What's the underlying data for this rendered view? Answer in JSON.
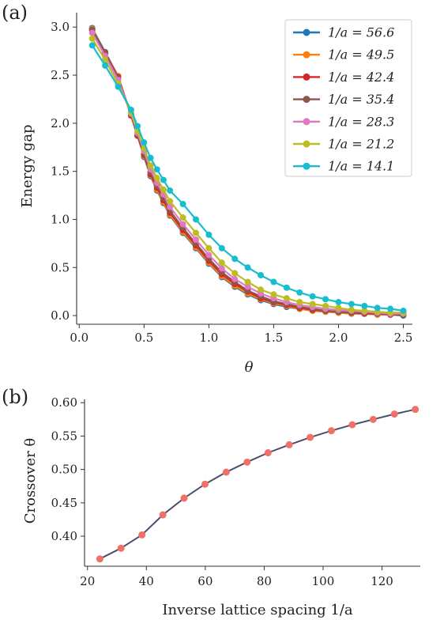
{
  "chart_data": [
    {
      "panel": "(a)",
      "type": "line",
      "xlabel": "θ",
      "ylabel": "Energy gap",
      "xlim": [
        -0.02,
        2.57
      ],
      "ylim": [
        -0.09,
        3.15
      ],
      "xticks": [
        "0.0",
        "0.5",
        "1.0",
        "1.5",
        "2.0",
        "2.5"
      ],
      "yticks": [
        "0.0",
        "0.5",
        "1.0",
        "1.5",
        "2.0",
        "2.5",
        "3.0"
      ],
      "legend_position": "top-right",
      "grid": false,
      "x": [
        0.1,
        0.2,
        0.3,
        0.4,
        0.45,
        0.5,
        0.55,
        0.6,
        0.65,
        0.7,
        0.8,
        0.9,
        1.0,
        1.1,
        1.2,
        1.3,
        1.4,
        1.5,
        1.6,
        1.7,
        1.8,
        1.9,
        2.0,
        2.1,
        2.2,
        2.3,
        2.4,
        2.5
      ],
      "series": [
        {
          "name": "1/a = 56.6",
          "color": "#1f77b4",
          "values": [
            2.99,
            2.74,
            2.49,
            2.08,
            1.87,
            1.65,
            1.45,
            1.3,
            1.17,
            1.04,
            0.86,
            0.7,
            0.54,
            0.4,
            0.3,
            0.22,
            0.16,
            0.12,
            0.09,
            0.07,
            0.05,
            0.04,
            0.03,
            0.02,
            0.02,
            0.01,
            0.01,
            0.0
          ]
        },
        {
          "name": "1/a = 49.5",
          "color": "#ff7f0e",
          "values": [
            2.98,
            2.73,
            2.49,
            2.08,
            1.87,
            1.66,
            1.46,
            1.31,
            1.18,
            1.05,
            0.87,
            0.71,
            0.55,
            0.41,
            0.31,
            0.23,
            0.17,
            0.13,
            0.1,
            0.07,
            0.05,
            0.04,
            0.03,
            0.02,
            0.02,
            0.01,
            0.01,
            0.01
          ]
        },
        {
          "name": "1/a = 42.4",
          "color": "#d62728",
          "values": [
            2.97,
            2.73,
            2.48,
            2.08,
            1.87,
            1.67,
            1.47,
            1.33,
            1.2,
            1.07,
            0.89,
            0.73,
            0.57,
            0.43,
            0.33,
            0.25,
            0.18,
            0.14,
            0.11,
            0.08,
            0.06,
            0.05,
            0.04,
            0.03,
            0.02,
            0.02,
            0.01,
            0.01
          ]
        },
        {
          "name": "1/a = 35.4",
          "color": "#8c564b",
          "values": [
            2.97,
            2.72,
            2.47,
            2.09,
            1.88,
            1.68,
            1.49,
            1.35,
            1.22,
            1.09,
            0.91,
            0.75,
            0.59,
            0.45,
            0.35,
            0.26,
            0.2,
            0.15,
            0.12,
            0.09,
            0.07,
            0.05,
            0.04,
            0.03,
            0.03,
            0.02,
            0.02,
            0.01
          ]
        },
        {
          "name": "1/a = 28.3",
          "color": "#e377c2",
          "values": [
            2.94,
            2.7,
            2.45,
            2.1,
            1.9,
            1.71,
            1.52,
            1.38,
            1.26,
            1.13,
            0.95,
            0.79,
            0.63,
            0.49,
            0.38,
            0.3,
            0.23,
            0.18,
            0.14,
            0.11,
            0.09,
            0.07,
            0.06,
            0.05,
            0.04,
            0.03,
            0.02,
            0.02
          ]
        },
        {
          "name": "1/a = 21.2",
          "color": "#bcbd22",
          "values": [
            2.88,
            2.66,
            2.41,
            2.11,
            1.92,
            1.74,
            1.56,
            1.43,
            1.31,
            1.19,
            1.02,
            0.86,
            0.7,
            0.55,
            0.44,
            0.35,
            0.27,
            0.22,
            0.18,
            0.14,
            0.12,
            0.1,
            0.08,
            0.06,
            0.05,
            0.04,
            0.03,
            0.03
          ]
        },
        {
          "name": "1/a = 14.1",
          "color": "#17becf",
          "values": [
            2.81,
            2.6,
            2.38,
            2.14,
            1.97,
            1.8,
            1.64,
            1.52,
            1.41,
            1.3,
            1.16,
            1.0,
            0.84,
            0.7,
            0.59,
            0.5,
            0.42,
            0.35,
            0.29,
            0.24,
            0.2,
            0.17,
            0.14,
            0.12,
            0.1,
            0.08,
            0.07,
            0.05
          ]
        }
      ]
    },
    {
      "panel": "(b)",
      "type": "line",
      "xlabel": "Inverse lattice spacing 1/a",
      "ylabel": "Crossover θ",
      "xlim": [
        19,
        133
      ],
      "ylim": [
        0.355,
        0.605
      ],
      "xticks": [
        "20",
        "40",
        "60",
        "80",
        "100",
        "120"
      ],
      "yticks": [
        "0.40",
        "0.45",
        "0.50",
        "0.55",
        "0.60"
      ],
      "grid": false,
      "line_color": "#4a4e6b",
      "marker_color": "#f07167",
      "x": [
        24.2,
        31.4,
        38.5,
        45.6,
        52.8,
        59.9,
        67.1,
        74.2,
        81.3,
        88.5,
        95.6,
        102.8,
        109.9,
        117.0,
        124.2,
        131.3
      ],
      "values": [
        0.366,
        0.382,
        0.402,
        0.432,
        0.457,
        0.478,
        0.496,
        0.511,
        0.525,
        0.537,
        0.548,
        0.558,
        0.567,
        0.575,
        0.583,
        0.59
      ]
    }
  ]
}
